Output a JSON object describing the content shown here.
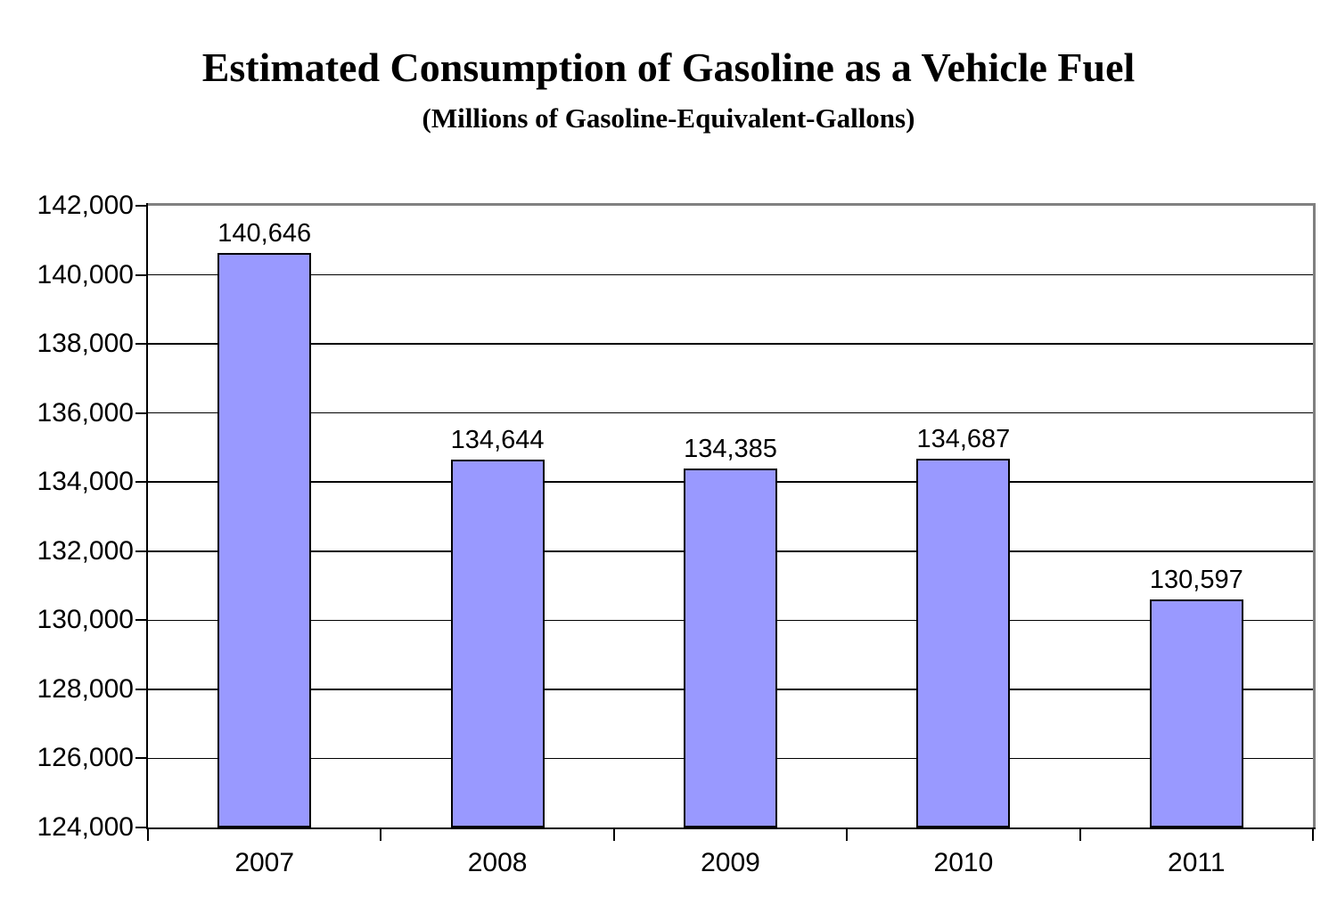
{
  "header": {
    "title": "Estimated Consumption of Gasoline as a Vehicle Fuel",
    "subtitle": "(Millions of Gasoline-Equivalent-Gallons)"
  },
  "chart_data": {
    "type": "bar",
    "title": "Estimated Consumption of Gasoline as a Vehicle Fuel",
    "subtitle": "(Millions of Gasoline-Equivalent-Gallons)",
    "categories": [
      "2007",
      "2008",
      "2009",
      "2010",
      "2011"
    ],
    "values": [
      140646,
      134644,
      134385,
      134687,
      130597
    ],
    "data_labels": [
      "140,646",
      "134,644",
      "134,385",
      "134,687",
      "130,597"
    ],
    "xlabel": "",
    "ylabel": "",
    "ylim": [
      124000,
      142000
    ],
    "ytick_step": 2000,
    "ytick_labels": [
      "124,000",
      "126,000",
      "128,000",
      "130,000",
      "132,000",
      "134,000",
      "136,000",
      "138,000",
      "140,000",
      "142,000"
    ],
    "grid": true,
    "legend": "none",
    "colors": {
      "bar_fill": "#9999FF",
      "bar_border": "#000000",
      "plot_border": "#808080",
      "gridline": "#000000",
      "axis": "#000000",
      "text": "#000000",
      "background": "#FFFFFF"
    }
  }
}
